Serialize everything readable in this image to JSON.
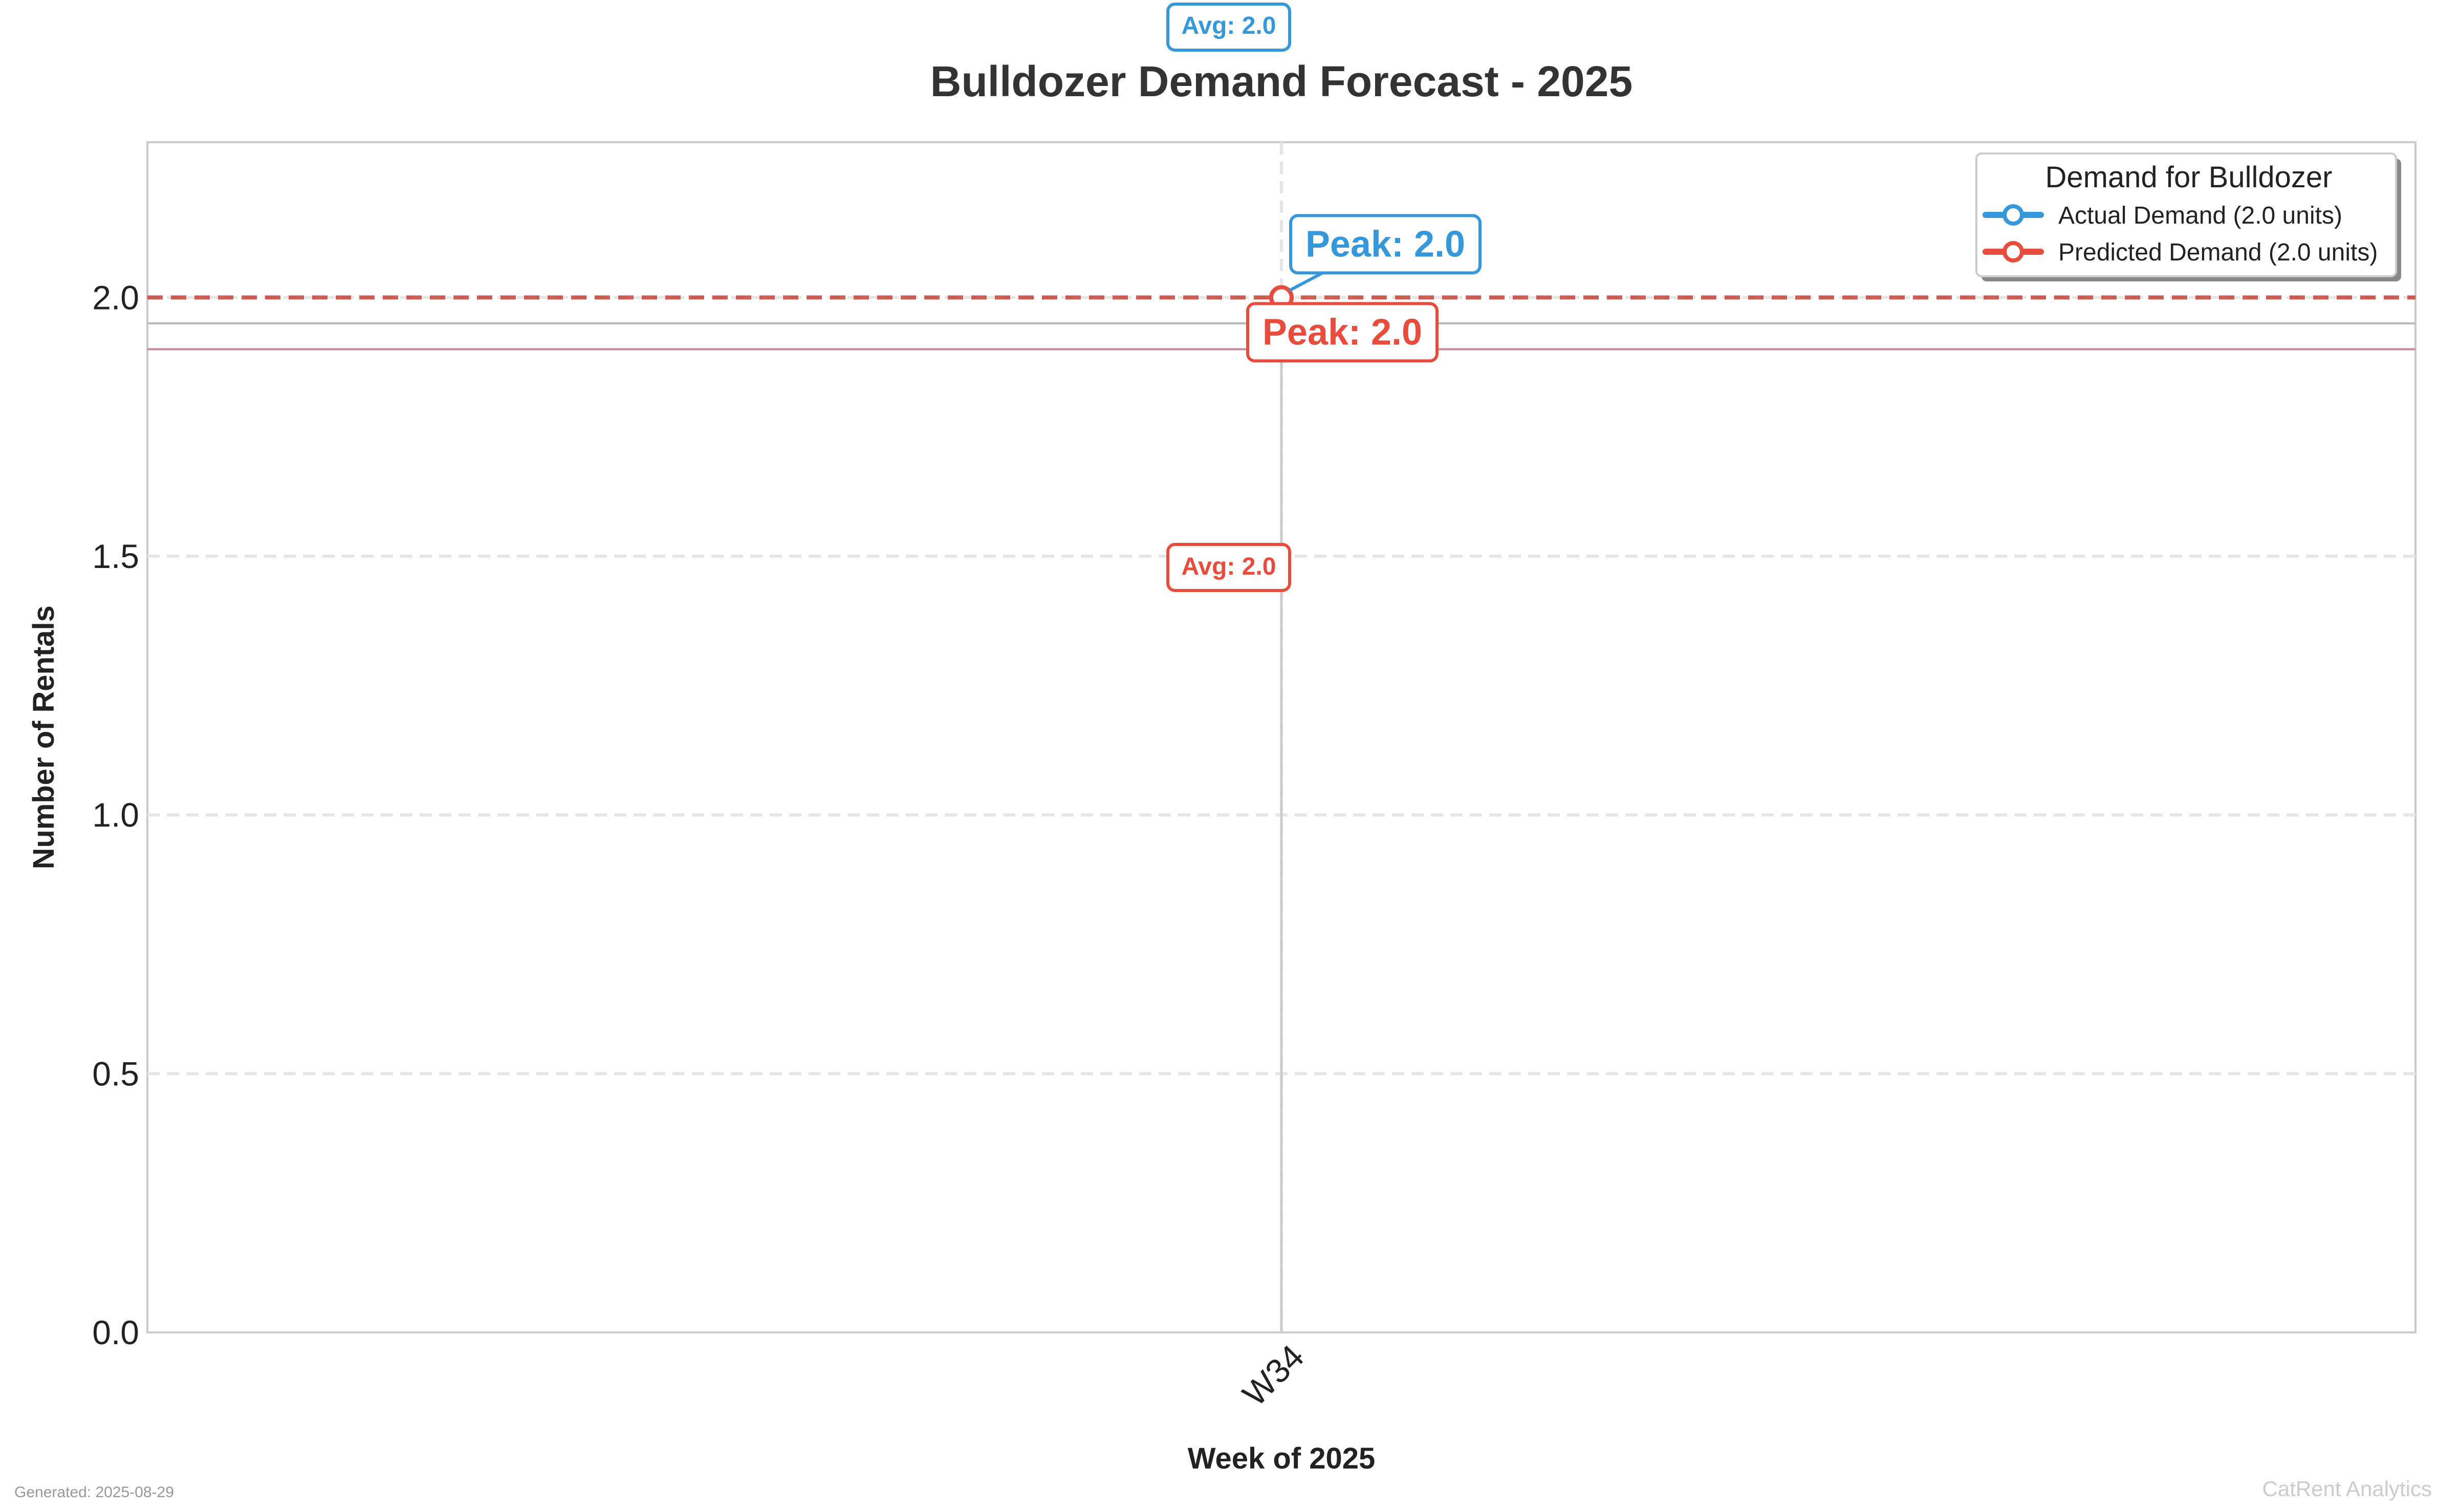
{
  "chart_data": {
    "type": "line",
    "title": "Bulldozer Demand Forecast - 2025",
    "xlabel": "Week of 2025",
    "ylabel": "Number of Rentals",
    "categories": [
      "W34"
    ],
    "ylim": [
      0,
      2.3
    ],
    "yticks": [
      0.0,
      0.5,
      1.0,
      1.5,
      2.0
    ],
    "ytick_labels": [
      "0.0",
      "0.5",
      "1.0",
      "1.5",
      "2.0"
    ],
    "grid": true,
    "legend": {
      "title": "Demand for Bulldozer",
      "placement": "top-right",
      "entries": [
        "Actual Demand (2.0 units)",
        "Predicted Demand (2.0 units)"
      ]
    },
    "series": [
      {
        "name": "Actual Demand (2.0 units)",
        "values": [
          2.0
        ],
        "color": "#3498db"
      },
      {
        "name": "Predicted Demand (2.0 units)",
        "values": [
          2.0
        ],
        "color": "#e74c3c"
      }
    ],
    "reference_lines": [
      {
        "value": 2.0,
        "color": "#c0392b",
        "style": "dashed"
      },
      {
        "value": 1.95,
        "color": "#bbbbbb",
        "style": "solid"
      },
      {
        "value": 1.9,
        "color": "#c98a9a",
        "style": "solid"
      }
    ],
    "annotations": {
      "actual_peak": "Peak: 2.0",
      "predicted_peak": "Peak: 2.0",
      "actual_avg": "Avg: 2.0",
      "predicted_avg": "Avg: 2.0"
    }
  },
  "footer": {
    "generated": "Generated: 2025-08-29",
    "brand": "CatRent Analytics"
  },
  "colors": {
    "actual": "#3498db",
    "predicted": "#e74c3c",
    "grid": "#e6e6e6",
    "frame": "#cccccc"
  }
}
